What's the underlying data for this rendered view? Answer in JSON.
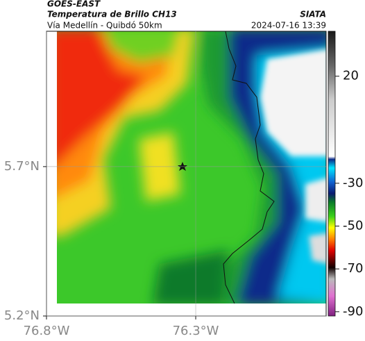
{
  "header": {
    "source": "GOES-EAST",
    "title": "Temperatura de Brillo CH13",
    "subtitle": "Vía Medellín - Quibdó 50km",
    "organization": "SIATA",
    "datetime": "2024-07-16 13:39"
  },
  "map": {
    "xlim": [
      -76.8,
      -75.863
    ],
    "ylim": [
      5.2,
      6.153
    ],
    "xticks": [
      {
        "value": -76.8,
        "label": "76.8°W"
      },
      {
        "value": -76.3,
        "label": "76.3°W"
      }
    ],
    "yticks": [
      {
        "value": 5.7,
        "label": "5.7°N"
      },
      {
        "value": 5.2,
        "label": "5.2°N"
      }
    ],
    "grid": true
  },
  "colorbar": {
    "lim": [
      -92,
      41
    ],
    "ticks": [
      20,
      -30,
      -50,
      -70,
      -90
    ]
  }
}
